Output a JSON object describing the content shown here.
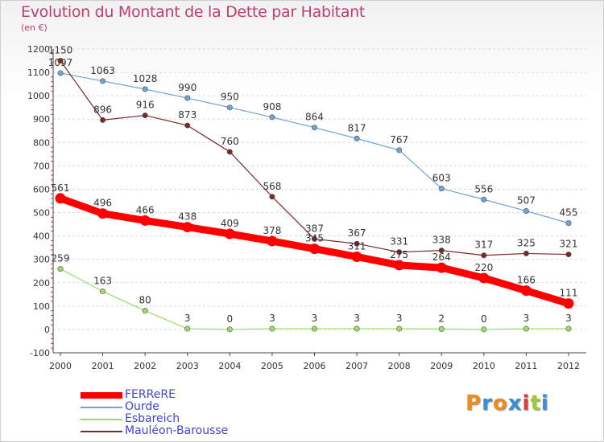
{
  "chart_data": {
    "type": "line",
    "title": "Evolution du Montant de la Dette par Habitant",
    "subtitle": "(en €)",
    "x": [
      "2000",
      "2001",
      "2002",
      "2003",
      "2004",
      "2005",
      "2006",
      "2007",
      "2008",
      "2009",
      "2010",
      "2011",
      "2012"
    ],
    "ylim": [
      -100,
      1200
    ],
    "yticks": [
      "-100",
      "0",
      "100",
      "200",
      "300",
      "400",
      "500",
      "600",
      "700",
      "800",
      "900",
      "1000",
      "1100",
      "1200"
    ],
    "grid": "horizontal dashed",
    "legend_position": "bottom-left",
    "series": [
      {
        "name": "FERReRE",
        "color": "#ff0000",
        "values": [
          561,
          496,
          466,
          438,
          409,
          378,
          345,
          311,
          275,
          264,
          220,
          166,
          111
        ]
      },
      {
        "name": "Ourde",
        "color": "#6fa4d4",
        "values": [
          1097,
          1063,
          1028,
          990,
          950,
          908,
          864,
          817,
          767,
          603,
          556,
          507,
          455
        ]
      },
      {
        "name": "Esbareich",
        "color": "#99dd66",
        "values": [
          259,
          163,
          80,
          3,
          0,
          3,
          3,
          3,
          3,
          2,
          0,
          3,
          3
        ]
      },
      {
        "name": "Mauléon-Barousse",
        "color": "#7a2828",
        "values": [
          1150,
          896,
          916,
          873,
          760,
          568,
          387,
          367,
          331,
          338,
          317,
          325,
          321
        ]
      }
    ]
  },
  "logo": {
    "letters": [
      "P",
      "r",
      "o",
      "x",
      "i",
      "t",
      "i"
    ]
  }
}
